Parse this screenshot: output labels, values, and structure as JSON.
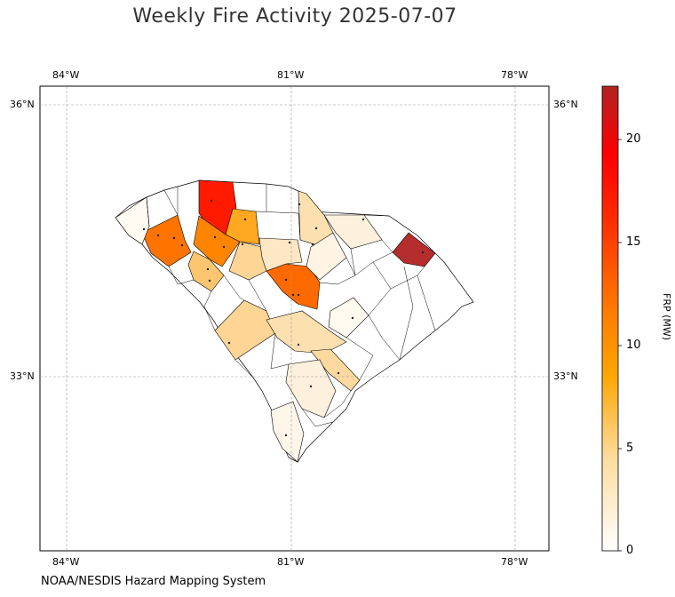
{
  "title": "Weekly Fire Activity 2025-07-07",
  "source": "NOAA/NESDIS Hazard Mapping System",
  "map": {
    "lon_ticks": [
      "84°W",
      "81°W",
      "78°W"
    ],
    "lat_ticks": [
      "36°N",
      "33°N"
    ],
    "gridlines": true,
    "extent": {
      "lon": [
        -84.4,
        -77.2
      ],
      "lat": [
        31.1,
        36.2
      ]
    }
  },
  "colorbar": {
    "label": "FRP (MW)",
    "ticks": [
      "0",
      "5",
      "10",
      "15",
      "20"
    ],
    "range": [
      0,
      22.5
    ],
    "colors": [
      "#ffffff",
      "#fddc9e",
      "#ffa500",
      "#ff7a00",
      "#ff2a00",
      "#b22222"
    ]
  },
  "chart_data": {
    "type": "choropleth",
    "title": "Weekly Fire Activity 2025-07-07",
    "colorbar_label": "FRP (MW)",
    "vmin": 0,
    "vmax": 22.5,
    "regions": [
      {
        "value": 22.3
      },
      {
        "value": 15.5
      },
      {
        "value": 11.0
      },
      {
        "value": 10.5
      },
      {
        "value": 10.0
      },
      {
        "value": 7.0
      },
      {
        "value": 4.0
      },
      {
        "value": 3.5
      },
      {
        "value": 3.0
      },
      {
        "value": 2.8
      },
      {
        "value": 2.5
      },
      {
        "value": 2.0
      },
      {
        "value": 1.5
      },
      {
        "value": 1.0
      },
      {
        "value": 0.8
      },
      {
        "value": 0.5
      },
      {
        "value": 0.3
      }
    ]
  }
}
